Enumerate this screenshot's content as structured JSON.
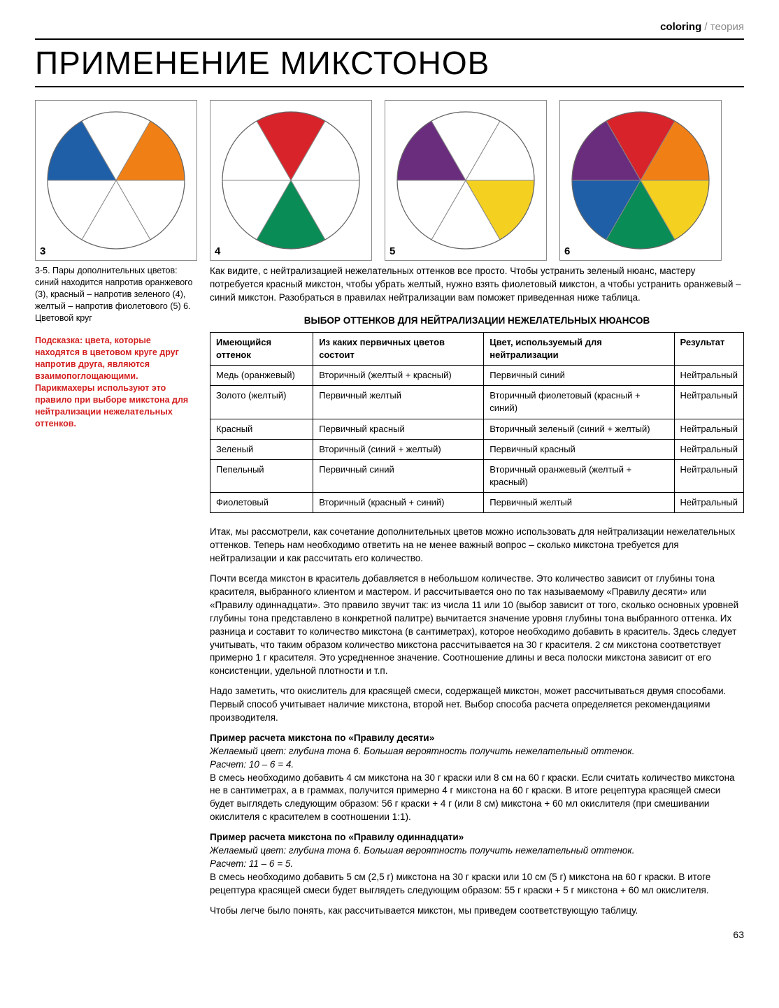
{
  "header": {
    "left": "coloring",
    "sep": " / ",
    "right": "теория"
  },
  "title": "ПРИМЕНЕНИЕ МИКСТОНОВ",
  "wheels": [
    {
      "num": "3",
      "slices": [
        {
          "color": "#ffffff"
        },
        {
          "color": "#f08016"
        },
        {
          "color": "#ffffff"
        },
        {
          "color": "#ffffff"
        },
        {
          "color": "#ffffff"
        },
        {
          "color": "#1f5fa8"
        }
      ]
    },
    {
      "num": "4",
      "slices": [
        {
          "color": "#d8232a"
        },
        {
          "color": "#ffffff"
        },
        {
          "color": "#ffffff"
        },
        {
          "color": "#0a8c56"
        },
        {
          "color": "#ffffff"
        },
        {
          "color": "#ffffff"
        }
      ]
    },
    {
      "num": "5",
      "slices": [
        {
          "color": "#ffffff"
        },
        {
          "color": "#ffffff"
        },
        {
          "color": "#f4d020"
        },
        {
          "color": "#ffffff"
        },
        {
          "color": "#ffffff"
        },
        {
          "color": "#6a2d7e"
        }
      ]
    },
    {
      "num": "6",
      "slices": [
        {
          "color": "#d8232a"
        },
        {
          "color": "#f08016"
        },
        {
          "color": "#f4d020"
        },
        {
          "color": "#0a8c56"
        },
        {
          "color": "#1f5fa8"
        },
        {
          "color": "#6a2d7e"
        }
      ]
    }
  ],
  "caption": "3-5. Пары дополнительных цветов: синий находится напротив оранжевого (3), красный – напротив зеленого (4), желтый – напротив фиолетового (5) 6. Цветовой круг",
  "hint": "Подсказка: цвета, которые находятся в цветовом круге друг напротив друга, являются взаимопоглощающими. Парикмахеры используют это правило при выборе микстона для нейтрализации нежелательных оттенков.",
  "intro": "Как видите, с нейтрализацией нежелательных оттенков все просто. Чтобы устранить зеленый нюанс, мастеру потребуется красный микстон, чтобы убрать желтый, нужно взять фиолетовый микстон, а чтобы устранить оранжевый – синий микстон. Разобраться в правилах нейтрализации вам поможет приведенная ниже таблица.",
  "table": {
    "title": "ВЫБОР ОТТЕНКОВ ДЛЯ НЕЙТРАЛИЗАЦИИ НЕЖЕЛАТЕЛЬНЫХ НЮАНСОВ",
    "columns": [
      "Имеющийся оттенок",
      "Из каких первичных цветов состоит",
      "Цвет, используемый для нейтрализации",
      "Результат"
    ],
    "rows": [
      [
        "Медь (оранжевый)",
        "Вторичный (желтый + красный)",
        "Первичный синий",
        "Нейтральный"
      ],
      [
        "Золото (желтый)",
        "Первичный желтый",
        "Вторичный фиолетовый (красный + синий)",
        "Нейтральный"
      ],
      [
        "Красный",
        "Первичный красный",
        "Вторичный зеленый (синий + желтый)",
        "Нейтральный"
      ],
      [
        "Зеленый",
        "Вторичный (синий + желтый)",
        "Первичный красный",
        "Нейтральный"
      ],
      [
        "Пепельный",
        "Первичный синий",
        "Вторичный оранжевый (желтый + красный)",
        "Нейтральный"
      ],
      [
        "Фиолетовый",
        "Вторичный (красный + синий)",
        "Первичный желтый",
        "Нейтральный"
      ]
    ]
  },
  "body": {
    "p1": "Итак, мы рассмотрели, как сочетание дополнительных цветов можно использовать для нейтрализации нежелательных оттенков. Теперь нам необходимо ответить на не менее важный вопрос – сколько микстона требуется для нейтрализации и как рассчитать его количество.",
    "p2": "Почти всегда микстон в краситель добавляется в небольшом количестве. Это количество зависит от глубины тона красителя, выбранного клиентом и мастером. И рассчитывается оно по так называемому «Правилу десяти» или «Правилу одиннадцати». Это правило звучит так: из числа 11 или 10 (выбор зависит от того, сколько основных уровней глубины тона представлено в конкретной палитре) вычитается значение уровня глубины тона выбранного оттенка. Их разница и составит то количество микстона (в сантиметрах), которое необходимо добавить в краситель. Здесь следует учитывать, что таким образом количество микстона рассчитывается на 30 г красителя. 2 см микстона соответствует примерно 1 г красителя. Это усредненное значение. Соотношение длины и веса полоски микстона зависит от его консистенции, удельной плотности и т.п.",
    "p3": "Надо заметить, что окислитель для красящей смеси, содержащей микстон, может рассчитываться двумя способами. Первый способ учитывает наличие микстона, второй нет. Выбор способа расчета определяется рекомендациями производителя.",
    "ex1_title": "Пример расчета микстона по «Правилу десяти»",
    "ex1_sub": "Желаемый цвет: глубина тона 6. Большая вероятность получить нежелательный оттенок.",
    "ex1_calc": "Расчет: 10 – 6 = 4.",
    "ex1_body": "В смесь необходимо добавить 4 см микстона на 30 г краски или 8 см на 60 г краски. Если считать количество микстона не в сантиметрах, а в граммах, получится примерно 4 г микстона на 60 г краски. В итоге рецептура красящей смеси будет выглядеть следующим образом: 56 г краски + 4 г (или 8 см) микстона + 60 мл окислителя (при смешивании окислителя с красителем в соотношении 1:1).",
    "ex2_title": "Пример расчета микстона по «Правилу одиннадцати»",
    "ex2_sub": "Желаемый цвет: глубина тона 6. Большая вероятность получить нежелательный оттенок.",
    "ex2_calc": "Расчет: 11 – 6 = 5.",
    "ex2_body": "В смесь необходимо добавить 5 см (2,5 г) микстона на 30 г краски или 10 см (5 г) микстона на 60 г краски. В итоге рецептура красящей смеси будет выглядеть следующим образом: 55 г краски + 5 г микстона + 60 мл окислителя.",
    "p4": "Чтобы легче было понять, как рассчитывается микстон, мы приведем соответствующую таблицу."
  },
  "page_num": "63"
}
